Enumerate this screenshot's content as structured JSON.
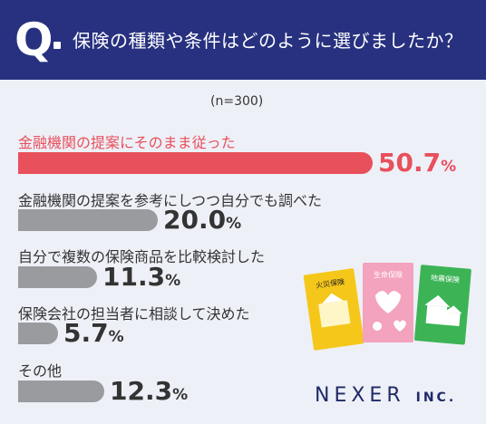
{
  "header": {
    "q_letter": "Q",
    "question": "保険の種類や条件はどのように選びましたか？"
  },
  "sample_note": "(n=300)",
  "chart_data": {
    "type": "bar",
    "orientation": "horizontal",
    "categories": [
      "金融機関の提案にそのまま従った",
      "金融機関の提案を参考にしつつ自分でも調べた",
      "自分で複数の保険商品を比較検討した",
      "保険会社の担当者に相談して決めた",
      "その他"
    ],
    "values": [
      50.7,
      20.0,
      11.3,
      5.7,
      12.3
    ],
    "value_labels": [
      "50.7",
      "20.0",
      "11.3",
      "5.7",
      "12.3"
    ],
    "unit": "%",
    "highlight_index": 0,
    "colors": {
      "highlight": "#e8505b",
      "default": "#9a9b9f"
    }
  },
  "illustration": {
    "cards": [
      {
        "label": "火災保険",
        "color": "#f5c71a"
      },
      {
        "label": "生命保険",
        "color": "#f3a3bd"
      },
      {
        "label": "地震保険",
        "color": "#3cb456"
      }
    ]
  },
  "logo": {
    "main": "NEXER",
    "suffix": "INC."
  },
  "colors": {
    "header_bg": "#27317f",
    "background": "#eef0f8",
    "logo": "#1f2a66"
  }
}
